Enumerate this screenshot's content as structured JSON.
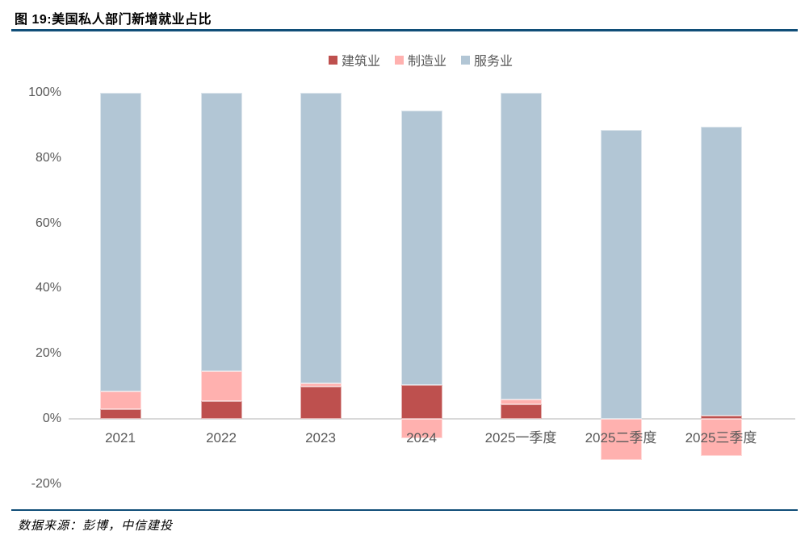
{
  "header": {
    "title": "图 19:美国私人部门新增就业占比"
  },
  "footer": {
    "source": "数据来源：彭博，中信建投"
  },
  "chart_data": {
    "type": "bar",
    "stacked": true,
    "title": "图 19:美国私人部门新增就业占比",
    "categories": [
      "2021",
      "2022",
      "2023",
      "2024",
      "2025一季度",
      "2025二季度",
      "2025三季度"
    ],
    "series": [
      {
        "name": "建筑业",
        "key": "construction",
        "color": "#BE504E",
        "values": [
          3,
          5.5,
          10,
          10.5,
          4.5,
          0,
          1
        ]
      },
      {
        "name": "制造业",
        "key": "manufacturing",
        "color": "#FFB1AF",
        "values": [
          5.5,
          9,
          1,
          -6,
          1.5,
          -12.5,
          -11.5
        ]
      },
      {
        "name": "服务业",
        "key": "services",
        "color": "#B2C6D5",
        "values": [
          91.5,
          85.5,
          89,
          84,
          94,
          88.5,
          88.5
        ]
      }
    ],
    "bar_totals_top": [
      100,
      100,
      100,
      94.5,
      100,
      88.5,
      89.5
    ],
    "xlabel": "",
    "ylabel": "",
    "unit": "%",
    "y_axis": {
      "tick_labels": [
        "100%",
        "80%",
        "60%",
        "40%",
        "20%",
        "0%",
        "-20%"
      ],
      "tick_values": [
        100,
        80,
        60,
        40,
        20,
        0,
        -20
      ],
      "ylim": [
        -25,
        105
      ]
    },
    "legend": {
      "position": "top-center",
      "entries": [
        "建筑业",
        "制造业",
        "服务业"
      ]
    },
    "grid": false,
    "colors": {
      "axis_line": "#D9D9D9",
      "axis_text": "#595959",
      "rule": "#104E78"
    }
  }
}
